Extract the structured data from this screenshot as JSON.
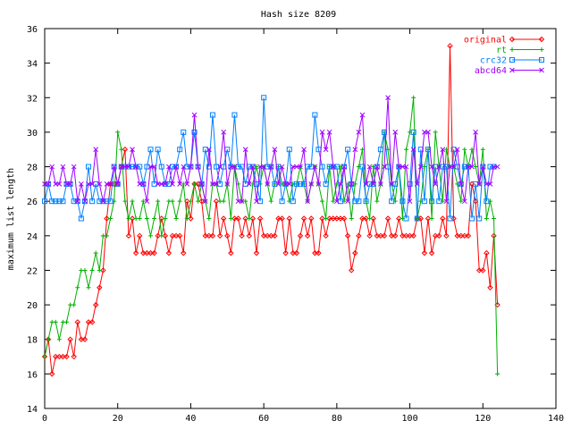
{
  "chart_data": {
    "type": "line",
    "title": "Hash size 8209",
    "xlabel": "",
    "ylabel": "maximum list length",
    "xlim": [
      0,
      140
    ],
    "ylim": [
      14,
      36
    ],
    "xticks": [
      0,
      20,
      40,
      60,
      80,
      100,
      120,
      140
    ],
    "yticks": [
      14,
      16,
      18,
      20,
      22,
      24,
      26,
      28,
      30,
      32,
      34,
      36
    ],
    "grid": false,
    "legend_position": "top-right",
    "series": [
      {
        "name": "original",
        "color": "#ff0000",
        "marker": "diamond",
        "y": [
          17,
          18,
          16,
          17,
          17,
          17,
          17,
          18,
          17,
          19,
          18,
          18,
          19,
          19,
          20,
          21,
          22,
          25,
          27,
          27,
          27,
          28,
          29,
          24,
          25,
          23,
          24,
          23,
          23,
          23,
          23,
          24,
          25,
          24,
          23,
          24,
          24,
          24,
          23,
          26,
          25,
          27,
          27,
          26,
          24,
          24,
          24,
          26,
          24,
          25,
          24,
          23,
          25,
          25,
          24,
          25,
          24,
          25,
          23,
          25,
          24,
          24,
          24,
          24,
          25,
          25,
          23,
          25,
          23,
          23,
          24,
          25,
          24,
          25,
          23,
          23,
          25,
          24,
          25,
          25,
          25,
          25,
          25,
          24,
          22,
          23,
          24,
          25,
          25,
          24,
          25,
          24,
          24,
          24,
          25,
          24,
          24,
          25,
          24,
          24,
          24,
          24,
          25,
          25,
          23,
          25,
          23,
          24,
          24,
          25,
          24,
          35,
          25,
          24,
          24,
          24,
          24,
          27,
          26,
          22,
          22,
          23,
          21,
          24,
          20
        ],
        "x_start": 0
      },
      {
        "name": "rt",
        "color": "#00b000",
        "marker": "plus",
        "y": [
          17,
          18,
          19,
          19,
          18,
          19,
          19,
          20,
          20,
          21,
          22,
          22,
          21,
          22,
          23,
          22,
          24,
          24,
          25,
          26,
          30,
          29,
          26,
          25,
          26,
          25,
          25,
          26,
          25,
          24,
          25,
          26,
          24,
          25,
          26,
          26,
          25,
          26,
          27,
          25,
          26,
          27,
          26,
          27,
          26,
          25,
          27,
          27,
          26,
          26,
          27,
          25,
          28,
          27,
          26,
          26,
          25,
          27,
          28,
          27,
          28,
          27,
          26,
          27,
          28,
          27,
          27,
          26,
          27,
          27,
          28,
          27,
          26,
          27,
          28,
          27,
          26,
          25,
          28,
          26,
          27,
          28,
          26,
          27,
          25,
          27,
          28,
          29,
          26,
          25,
          28,
          26,
          27,
          30,
          29,
          27,
          26,
          28,
          25,
          29,
          30,
          32,
          25,
          26,
          28,
          29,
          25,
          30,
          28,
          26,
          29,
          28,
          28,
          27,
          26,
          29,
          28,
          29,
          28,
          27,
          29,
          25,
          26,
          25,
          16
        ]
      },
      {
        "name": "crc32",
        "color": "#0080ff",
        "marker": "square",
        "y": [
          26,
          27,
          26,
          26,
          26,
          26,
          27,
          27,
          26,
          26,
          25,
          26,
          28,
          26,
          27,
          26,
          26,
          26,
          26,
          28,
          27,
          28,
          28,
          28,
          28,
          28,
          28,
          27,
          28,
          29,
          27,
          29,
          28,
          27,
          27,
          28,
          28,
          29,
          30,
          28,
          28,
          30,
          28,
          27,
          29,
          28,
          31,
          28,
          27,
          28,
          29,
          28,
          31,
          28,
          28,
          27,
          28,
          28,
          27,
          26,
          32,
          28,
          28,
          27,
          28,
          26,
          27,
          29,
          26,
          27,
          27,
          27,
          28,
          28,
          31,
          29,
          28,
          27,
          28,
          28,
          28,
          26,
          28,
          29,
          27,
          26,
          26,
          28,
          26,
          27,
          27,
          28,
          29,
          30,
          28,
          26,
          27,
          28,
          26,
          25,
          27,
          30,
          25,
          29,
          26,
          29,
          26,
          28,
          26,
          28,
          28,
          25,
          29,
          28,
          27,
          28,
          28,
          25,
          27,
          25,
          28,
          26,
          28,
          28
        ]
      },
      {
        "name": "abcd64",
        "color": "#a000ff",
        "marker": "x",
        "y": [
          27,
          27,
          28,
          27,
          27,
          28,
          27,
          27,
          28,
          26,
          27,
          26,
          27,
          27,
          29,
          27,
          26,
          27,
          27,
          28,
          27,
          28,
          28,
          28,
          29,
          28,
          27,
          27,
          26,
          28,
          28,
          27,
          27,
          27,
          28,
          27,
          28,
          27,
          28,
          27,
          28,
          31,
          28,
          27,
          26,
          29,
          27,
          27,
          28,
          30,
          27,
          28,
          28,
          26,
          26,
          29,
          27,
          28,
          26,
          28,
          28,
          27,
          28,
          29,
          27,
          28,
          27,
          27,
          28,
          28,
          28,
          29,
          26,
          27,
          28,
          27,
          30,
          29,
          30,
          28,
          26,
          27,
          28,
          26,
          27,
          29,
          30,
          31,
          27,
          28,
          27,
          28,
          27,
          28,
          32,
          27,
          30,
          28,
          28,
          28,
          26,
          29,
          27,
          28,
          30,
          30,
          28,
          27,
          28,
          29,
          26,
          28,
          28,
          29,
          27,
          26,
          28,
          28,
          30,
          27,
          28,
          27,
          27,
          28,
          28
        ]
      }
    ]
  }
}
